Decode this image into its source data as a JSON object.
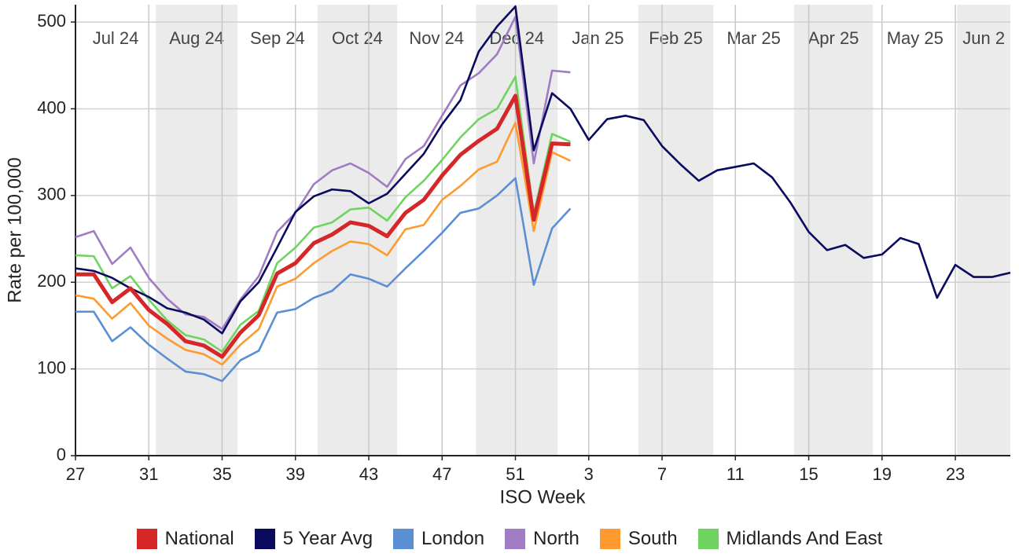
{
  "chart_data": {
    "type": "line",
    "x_label": "ISO Week",
    "y_label": "Rate per 100,000",
    "categories": [
      "27",
      null,
      null,
      null,
      "31",
      null,
      null,
      null,
      "35",
      null,
      null,
      null,
      "39",
      null,
      null,
      null,
      "43",
      null,
      null,
      null,
      "47",
      null,
      null,
      null,
      "51",
      null,
      null,
      null,
      "3",
      null,
      null,
      null,
      "7",
      null,
      null,
      null,
      "11",
      null,
      null,
      null,
      "15",
      null,
      null,
      null,
      "19",
      null,
      null,
      null,
      "23",
      null,
      null,
      null
    ],
    "months": [
      {
        "label": "Jul 24",
        "start": -1
      },
      {
        "label": "Aug 24",
        "start": 4.38
      },
      {
        "label": "Sep 24",
        "start": 8.84
      },
      {
        "label": "Oct 24",
        "start": 13.2
      },
      {
        "label": "Nov 24",
        "start": 17.55
      },
      {
        "label": "Dec 24",
        "start": 21.85
      },
      {
        "label": "Jan 25",
        "start": 26.3
      },
      {
        "label": "Feb 25",
        "start": 30.7
      },
      {
        "label": "Mar 25",
        "start": 34.8
      },
      {
        "label": "Apr 25",
        "start": 39.2
      },
      {
        "label": "May 25",
        "start": 43.5
      },
      {
        "label": "Jun 2",
        "start": 48.1
      }
    ],
    "ylim": [
      0,
      520
    ],
    "yticks": [
      0,
      100,
      200,
      300,
      400,
      500
    ],
    "grid": true,
    "series": [
      {
        "name": "London",
        "color": "#5b8fd4",
        "values": [
          166,
          166,
          132,
          148,
          128,
          112,
          97,
          94,
          86,
          110,
          121,
          165,
          169,
          182,
          190,
          209,
          204,
          195,
          216,
          236,
          257,
          280,
          285,
          300,
          320,
          197,
          262,
          285,
          null,
          null,
          null,
          null,
          null,
          null,
          null,
          null,
          null,
          null,
          null,
          null,
          null,
          null,
          null,
          null,
          null,
          null,
          null,
          null,
          null,
          null,
          null,
          null
        ]
      },
      {
        "name": "North",
        "color": "#a07cc4",
        "values": [
          252,
          259,
          221,
          240,
          205,
          181,
          163,
          160,
          146,
          180,
          207,
          258,
          280,
          313,
          329,
          337,
          326,
          310,
          342,
          357,
          392,
          427,
          441,
          463,
          506,
          337,
          444,
          442,
          null,
          null,
          null,
          null,
          null,
          null,
          null,
          null,
          null,
          null,
          null,
          null,
          null,
          null,
          null,
          null,
          null,
          null,
          null,
          null,
          null,
          null,
          null,
          null
        ]
      },
      {
        "name": "South",
        "color": "#ff9a2e",
        "values": [
          185,
          181,
          158,
          176,
          150,
          135,
          122,
          117,
          105,
          128,
          146,
          195,
          204,
          222,
          236,
          247,
          244,
          231,
          261,
          266,
          295,
          311,
          330,
          339,
          384,
          259,
          350,
          340,
          null,
          null,
          null,
          null,
          null,
          null,
          null,
          null,
          null,
          null,
          null,
          null,
          null,
          null,
          null,
          null,
          null,
          null,
          null,
          null,
          null,
          null,
          null,
          null
        ]
      },
      {
        "name": "Midlands And East",
        "color": "#6fd45f",
        "values": [
          231,
          230,
          193,
          207,
          180,
          156,
          139,
          134,
          120,
          151,
          167,
          222,
          240,
          263,
          269,
          284,
          286,
          271,
          298,
          317,
          341,
          367,
          388,
          400,
          437,
          279,
          371,
          362,
          null,
          null,
          null,
          null,
          null,
          null,
          null,
          null,
          null,
          null,
          null,
          null,
          null,
          null,
          null,
          null,
          null,
          null,
          null,
          null,
          null,
          null,
          null,
          null
        ]
      },
      {
        "name": "5 Year Avg",
        "color": "#0a0a5f",
        "values": [
          216,
          213,
          205,
          193,
          183,
          170,
          165,
          157,
          141,
          178,
          200,
          240,
          281,
          299,
          307,
          305,
          291,
          302,
          325,
          348,
          382,
          410,
          466,
          495,
          518,
          352,
          418,
          400,
          364,
          388,
          392,
          387,
          357,
          336,
          317,
          329,
          333,
          337,
          321,
          292,
          258,
          237,
          243,
          228,
          232,
          251,
          244,
          182,
          220,
          206,
          206,
          211
        ]
      },
      {
        "name": "National",
        "color": "#d62728",
        "values": [
          209,
          209,
          177,
          193,
          168,
          152,
          132,
          127,
          114,
          142,
          162,
          210,
          222,
          245,
          255,
          269,
          265,
          253,
          280,
          295,
          323,
          347,
          363,
          377,
          415,
          272,
          360,
          359,
          null,
          null,
          null,
          null,
          null,
          null,
          null,
          null,
          null,
          null,
          null,
          null,
          null,
          null,
          null,
          null,
          null,
          null,
          null,
          null,
          null,
          null,
          null,
          null
        ]
      }
    ],
    "legend_order": [
      "National",
      "5 Year Avg",
      "London",
      "North",
      "South",
      "Midlands And East"
    ]
  }
}
